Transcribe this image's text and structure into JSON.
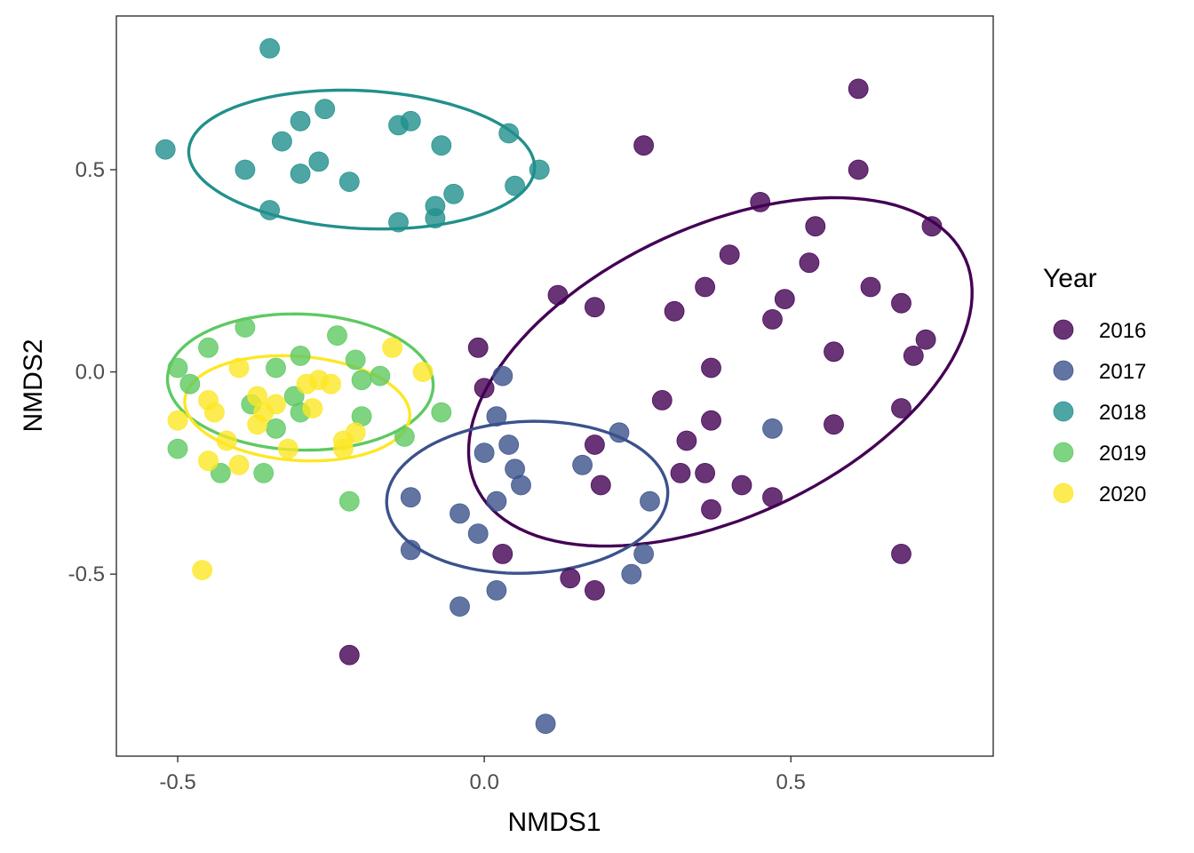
{
  "chart_data": {
    "type": "scatter",
    "title": "",
    "xlabel": "NMDS1",
    "ylabel": "NMDS2",
    "xlim": [
      -0.6,
      0.83
    ],
    "ylim": [
      -0.95,
      0.88
    ],
    "xticks": [
      -0.5,
      0.0,
      0.5
    ],
    "yticks": [
      -0.5,
      0.0,
      0.5
    ],
    "xtick_labels": [
      "-0.5",
      "0.0",
      "0.5"
    ],
    "ytick_labels": [
      "-0.5",
      "0.0",
      "0.5"
    ],
    "grid": false,
    "legend": {
      "title": "Year",
      "position": "right"
    },
    "ellipses": true,
    "series": [
      {
        "name": "2016",
        "color": "#440154",
        "ellipse": {
          "cx": 0.385,
          "cy": -0.0,
          "rx": 0.508,
          "ry": 0.31,
          "angle_deg": 48
        },
        "points": [
          [
            0.61,
            0.7
          ],
          [
            0.26,
            0.56
          ],
          [
            0.61,
            0.5
          ],
          [
            0.45,
            0.42
          ],
          [
            0.54,
            0.36
          ],
          [
            0.73,
            0.36
          ],
          [
            0.4,
            0.29
          ],
          [
            0.53,
            0.27
          ],
          [
            0.63,
            0.21
          ],
          [
            0.36,
            0.21
          ],
          [
            0.12,
            0.19
          ],
          [
            0.49,
            0.18
          ],
          [
            0.68,
            0.17
          ],
          [
            0.18,
            0.16
          ],
          [
            0.31,
            0.15
          ],
          [
            0.47,
            0.13
          ],
          [
            0.72,
            0.08
          ],
          [
            -0.01,
            0.06
          ],
          [
            0.57,
            0.05
          ],
          [
            0.7,
            0.04
          ],
          [
            0.37,
            0.01
          ],
          [
            0.0,
            -0.04
          ],
          [
            0.29,
            -0.07
          ],
          [
            0.68,
            -0.09
          ],
          [
            0.37,
            -0.12
          ],
          [
            0.57,
            -0.13
          ],
          [
            0.33,
            -0.17
          ],
          [
            0.18,
            -0.18
          ],
          [
            0.32,
            -0.25
          ],
          [
            0.36,
            -0.25
          ],
          [
            0.19,
            -0.28
          ],
          [
            0.42,
            -0.28
          ],
          [
            0.47,
            -0.31
          ],
          [
            0.37,
            -0.34
          ],
          [
            0.03,
            -0.45
          ],
          [
            0.68,
            -0.45
          ],
          [
            0.14,
            -0.51
          ],
          [
            0.18,
            -0.54
          ],
          [
            -0.22,
            -0.7
          ]
        ]
      },
      {
        "name": "2017",
        "color": "#3b528b",
        "ellipse": {
          "cx": 0.07,
          "cy": -0.31,
          "rx": 0.23,
          "ry": 0.187,
          "angle_deg": 8
        },
        "points": [
          [
            0.03,
            -0.01
          ],
          [
            0.02,
            -0.11
          ],
          [
            0.47,
            -0.14
          ],
          [
            0.22,
            -0.15
          ],
          [
            0.04,
            -0.18
          ],
          [
            0.0,
            -0.2
          ],
          [
            0.05,
            -0.24
          ],
          [
            0.16,
            -0.23
          ],
          [
            0.06,
            -0.28
          ],
          [
            -0.12,
            -0.31
          ],
          [
            0.02,
            -0.32
          ],
          [
            0.27,
            -0.32
          ],
          [
            -0.04,
            -0.35
          ],
          [
            -0.01,
            -0.4
          ],
          [
            -0.12,
            -0.44
          ],
          [
            0.26,
            -0.45
          ],
          [
            0.24,
            -0.5
          ],
          [
            0.02,
            -0.54
          ],
          [
            -0.04,
            -0.58
          ],
          [
            0.1,
            -0.87
          ]
        ]
      },
      {
        "name": "2018",
        "color": "#21908c",
        "ellipse": {
          "cx": -0.2,
          "cy": 0.525,
          "rx": 0.283,
          "ry": 0.17,
          "angle_deg": -6
        },
        "points": [
          [
            -0.35,
            0.8
          ],
          [
            -0.26,
            0.65
          ],
          [
            -0.3,
            0.62
          ],
          [
            -0.12,
            0.62
          ],
          [
            -0.14,
            0.61
          ],
          [
            0.04,
            0.59
          ],
          [
            -0.33,
            0.57
          ],
          [
            -0.07,
            0.56
          ],
          [
            -0.52,
            0.55
          ],
          [
            -0.27,
            0.52
          ],
          [
            -0.39,
            0.5
          ],
          [
            0.09,
            0.5
          ],
          [
            -0.3,
            0.49
          ],
          [
            -0.22,
            0.47
          ],
          [
            0.05,
            0.46
          ],
          [
            -0.05,
            0.44
          ],
          [
            -0.08,
            0.41
          ],
          [
            -0.35,
            0.4
          ],
          [
            -0.08,
            0.38
          ],
          [
            -0.14,
            0.37
          ]
        ]
      },
      {
        "name": "2019",
        "color": "#5ec962",
        "ellipse": {
          "cx": -0.3,
          "cy": -0.025,
          "rx": 0.217,
          "ry": 0.168,
          "angle_deg": -5
        },
        "points": [
          [
            -0.39,
            0.11
          ],
          [
            -0.24,
            0.09
          ],
          [
            -0.45,
            0.06
          ],
          [
            -0.21,
            0.03
          ],
          [
            -0.3,
            0.04
          ],
          [
            -0.5,
            0.01
          ],
          [
            -0.34,
            0.01
          ],
          [
            -0.17,
            -0.01
          ],
          [
            -0.2,
            -0.02
          ],
          [
            -0.48,
            -0.03
          ],
          [
            -0.31,
            -0.06
          ],
          [
            -0.38,
            -0.08
          ],
          [
            -0.3,
            -0.1
          ],
          [
            -0.2,
            -0.11
          ],
          [
            -0.07,
            -0.1
          ],
          [
            -0.34,
            -0.14
          ],
          [
            -0.13,
            -0.16
          ],
          [
            -0.5,
            -0.19
          ],
          [
            -0.36,
            -0.25
          ],
          [
            -0.43,
            -0.25
          ],
          [
            -0.22,
            -0.32
          ]
        ]
      },
      {
        "name": "2020",
        "color": "#fde725",
        "ellipse": {
          "cx": -0.305,
          "cy": -0.09,
          "rx": 0.185,
          "ry": 0.128,
          "angle_deg": -10
        },
        "points": [
          [
            -0.15,
            0.06
          ],
          [
            -0.1,
            0.0
          ],
          [
            -0.4,
            0.01
          ],
          [
            -0.27,
            -0.02
          ],
          [
            -0.29,
            -0.03
          ],
          [
            -0.25,
            -0.03
          ],
          [
            -0.45,
            -0.07
          ],
          [
            -0.37,
            -0.06
          ],
          [
            -0.34,
            -0.08
          ],
          [
            -0.36,
            -0.1
          ],
          [
            -0.28,
            -0.09
          ],
          [
            -0.44,
            -0.1
          ],
          [
            -0.5,
            -0.12
          ],
          [
            -0.37,
            -0.13
          ],
          [
            -0.21,
            -0.15
          ],
          [
            -0.42,
            -0.17
          ],
          [
            -0.23,
            -0.17
          ],
          [
            -0.23,
            -0.19
          ],
          [
            -0.32,
            -0.19
          ],
          [
            -0.45,
            -0.22
          ],
          [
            -0.4,
            -0.23
          ],
          [
            -0.46,
            -0.49
          ]
        ]
      }
    ]
  }
}
